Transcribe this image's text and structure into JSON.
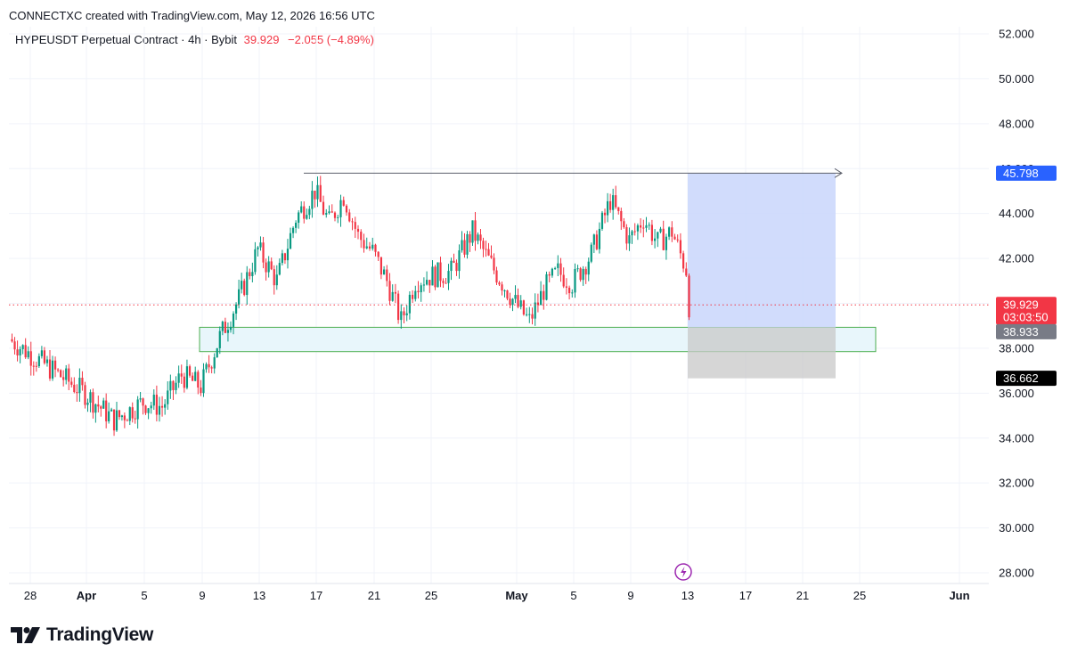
{
  "header": {
    "credit": "CONNECTXC created with TradingView.com, May 12, 2026 16:56 UTC"
  },
  "legend": {
    "symbol": "HYPEUSDT Perpetual Contract · 4h · Bybit",
    "last": "39.929",
    "change": "−2.055 (−4.89%)"
  },
  "footer": {
    "brand": "TradingView"
  },
  "colors": {
    "up": "#089981",
    "down": "#f23645",
    "zone_fill": "#e8f6fb",
    "zone_border": "#4caf50",
    "target_fill": "#c9d6fc",
    "stop_fill": "#c8c8c8",
    "grid": "#f0f3fa",
    "target_tag": "#2962ff"
  },
  "chart_data": {
    "type": "candlestick",
    "symbol": "HYPEUSDT",
    "interval": "4h",
    "y_axis": {
      "ticks": [
        "52.000",
        "50.000",
        "48.000",
        "46.000",
        "44.000",
        "42.000",
        "40.000",
        "38.000",
        "36.000",
        "34.000",
        "32.000",
        "30.000",
        "28.000"
      ],
      "ylim": [
        27.6,
        52.6
      ]
    },
    "x_axis": {
      "ticks": [
        "28",
        "Apr",
        "5",
        "9",
        "13",
        "17",
        "21",
        "25",
        "May",
        "5",
        "9",
        "13",
        "17",
        "21",
        "25",
        "Jun"
      ]
    },
    "price_labels": {
      "target": "45.798",
      "current": "39.929",
      "countdown": "03:03:50",
      "entry": "38.933",
      "stop": "36.662"
    },
    "levels": {
      "target": 45.798,
      "current": 39.929,
      "entry": 38.933,
      "stop": 36.662,
      "zone_top": 38.933,
      "zone_bottom": 37.85
    },
    "price_path": [
      [
        "28",
        38.4
      ],
      [
        "Apr",
        36.0
      ],
      [
        "Apr",
        34.8
      ],
      [
        "5",
        35.6
      ],
      [
        "5",
        35.4
      ],
      [
        "5",
        36.8
      ],
      [
        "9",
        36.3
      ],
      [
        "9",
        38.5
      ],
      [
        "9",
        40.2
      ],
      [
        "13",
        42.4
      ],
      [
        "13",
        41.0
      ],
      [
        "13",
        43.8
      ],
      [
        "17",
        45.0
      ],
      [
        "17",
        43.6
      ],
      [
        "17",
        44.8
      ],
      [
        "17",
        43.0
      ],
      [
        "21",
        42.3
      ],
      [
        "21",
        41.0
      ],
      [
        "21",
        39.2
      ],
      [
        "21",
        41.0
      ],
      [
        "25",
        41.2
      ],
      [
        "25",
        41.4
      ],
      [
        "25",
        43.2
      ],
      [
        "25",
        41.5
      ],
      [
        "May",
        40.0
      ],
      [
        "May",
        39.2
      ],
      [
        "May",
        40.6
      ],
      [
        "May",
        41.4
      ],
      [
        "5",
        40.9
      ],
      [
        "5",
        42.2
      ],
      [
        "5",
        44.6
      ],
      [
        "9",
        42.8
      ],
      [
        "9",
        43.8
      ],
      [
        "9",
        42.7
      ],
      [
        "9",
        43.2
      ],
      [
        "13",
        41.5
      ],
      [
        "13",
        39.9
      ]
    ]
  }
}
